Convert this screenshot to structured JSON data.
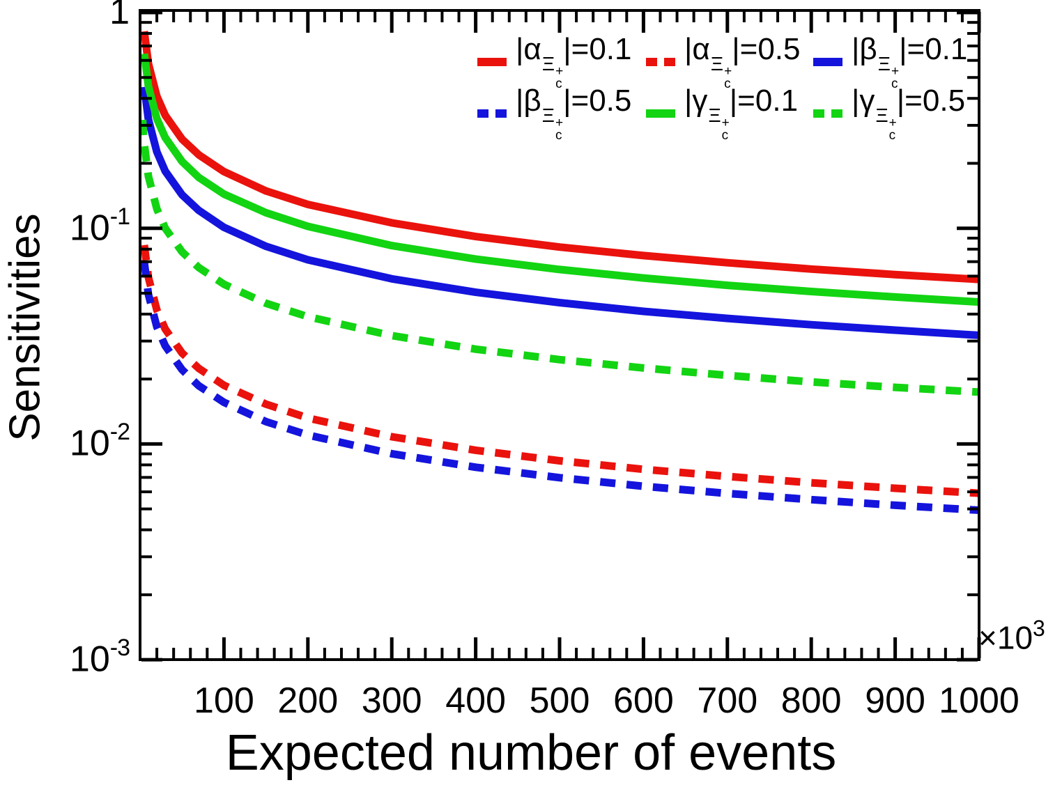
{
  "chart_data": {
    "type": "line",
    "title": "",
    "xlabel": "Expected number of events",
    "ylabel": "Sensitivities",
    "x_multiplier": {
      "base": "×10",
      "exp": "3"
    },
    "xlim": [
      0,
      1000
    ],
    "ylim": [
      0.001,
      1
    ],
    "yscale": "log",
    "xscale": "linear",
    "grid": false,
    "legend_position": "top-right-inside",
    "x_major_ticks": [
      100,
      200,
      300,
      400,
      500,
      600,
      700,
      800,
      900,
      1000
    ],
    "x_minor_step": 20,
    "y_major_ticks": [
      {
        "value": 1,
        "base": "1",
        "exp": ""
      },
      {
        "value": 0.1,
        "base": "10",
        "exp": "-1"
      },
      {
        "value": 0.01,
        "base": "10",
        "exp": "-2"
      },
      {
        "value": 0.001,
        "base": "10",
        "exp": "-3"
      }
    ],
    "x": [
      3,
      4,
      5,
      10,
      20,
      30,
      50,
      70,
      100,
      150,
      200,
      300,
      400,
      500,
      600,
      700,
      800,
      900,
      1000
    ],
    "series": [
      {
        "name": "|α_Ξc+|=0.1",
        "color": "#ea120c",
        "line": "solid",
        "values": [
          null,
          null,
          0.818,
          0.579,
          0.409,
          0.334,
          0.259,
          0.219,
          0.183,
          0.149,
          0.129,
          0.106,
          0.0915,
          0.0818,
          0.0747,
          0.0692,
          0.0647,
          0.061,
          0.0579
        ]
      },
      {
        "name": "|α_Ξc+|=0.5",
        "color": "#ea120c",
        "line": "dashed",
        "values": [
          null,
          null,
          0.0836,
          0.0591,
          0.0418,
          0.0341,
          0.0264,
          0.0224,
          0.0187,
          0.0153,
          0.0132,
          0.0108,
          0.00935,
          0.00836,
          0.00763,
          0.00707,
          0.00661,
          0.00623,
          0.00591
        ]
      },
      {
        "name": "|β_Ξc+|=0.1",
        "color": "#1414dd",
        "line": "solid",
        "values": [
          null,
          null,
          0.452,
          0.319,
          0.226,
          0.184,
          0.143,
          0.121,
          0.101,
          0.0825,
          0.0714,
          0.0583,
          0.0505,
          0.0452,
          0.0412,
          0.0382,
          0.0357,
          0.0337,
          0.0319
        ]
      },
      {
        "name": "|β_Ξc+|=0.5",
        "color": "#1414dd",
        "line": "dashed",
        "values": [
          null,
          null,
          0.0698,
          0.0493,
          0.0349,
          0.0285,
          0.0221,
          0.0186,
          0.0156,
          0.0127,
          0.011,
          0.00901,
          0.0078,
          0.00698,
          0.00637,
          0.0059,
          0.00552,
          0.0052,
          0.00493
        ]
      },
      {
        "name": "|γ_Ξc+|=0.1",
        "color": "#12d412",
        "line": "solid",
        "values": [
          null,
          null,
          0.644,
          0.455,
          0.322,
          0.263,
          0.204,
          0.172,
          0.144,
          0.118,
          0.102,
          0.0831,
          0.072,
          0.0644,
          0.0588,
          0.0544,
          0.0509,
          0.048,
          0.0455
        ]
      },
      {
        "name": "|γ_Ξc+|=0.5",
        "color": "#12d412",
        "line": "dashed",
        "values": [
          0.318,
          0.275,
          0.246,
          0.174,
          0.123,
          0.1,
          0.0778,
          0.0657,
          0.055,
          0.0449,
          0.0389,
          0.0318,
          0.0275,
          0.0246,
          0.0225,
          0.0208,
          0.0194,
          0.0183,
          0.0174
        ]
      }
    ]
  },
  "legend": {
    "entries": [
      {
        "series_index": 0,
        "prefix": "|α",
        "particle": "Ξ",
        "particle_sub": "c",
        "particle_sup": "+",
        "suffix": "|=0.1"
      },
      {
        "series_index": 1,
        "prefix": "|α",
        "particle": "Ξ",
        "particle_sub": "c",
        "particle_sup": "+",
        "suffix": "|=0.5"
      },
      {
        "series_index": 2,
        "prefix": "|β",
        "particle": "Ξ",
        "particle_sub": "c",
        "particle_sup": "+",
        "suffix": "|=0.1"
      },
      {
        "series_index": 3,
        "prefix": "|β",
        "particle": "Ξ",
        "particle_sub": "c",
        "particle_sup": "+",
        "suffix": "|=0.5"
      },
      {
        "series_index": 4,
        "prefix": "|γ",
        "particle": "Ξ",
        "particle_sub": "c",
        "particle_sup": "+",
        "suffix": "|=0.1"
      },
      {
        "series_index": 5,
        "prefix": "|γ",
        "particle": "Ξ",
        "particle_sub": "c",
        "particle_sup": "+",
        "suffix": "|=0.5"
      }
    ]
  },
  "frame_color": "#000000"
}
